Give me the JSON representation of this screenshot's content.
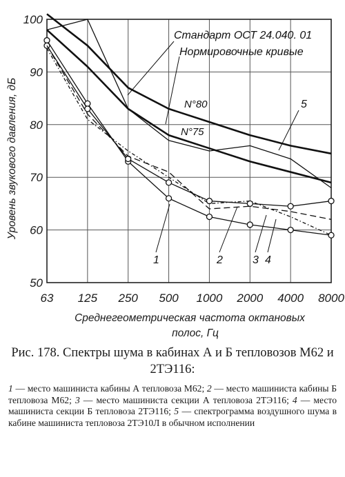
{
  "chart_data": {
    "type": "line",
    "x_categories": [
      "63",
      "125",
      "250",
      "500",
      "1000",
      "2000",
      "4000",
      "8000"
    ],
    "y_ticks": [
      50,
      60,
      70,
      80,
      90,
      100
    ],
    "ylim": [
      50,
      100
    ],
    "ylabel": "Уровень звукового давления, дБ",
    "xlabel": "Среднегеометрическая частота октановых полос, Гц",
    "annotations": {
      "standard": "Стандарт ОСТ 24.040. 01",
      "norm_curves": "Нормировочные кривые",
      "n80": "N°80",
      "n75": "N°75"
    },
    "norm_curves": [
      {
        "name": "N°80",
        "values": [
          101,
          95,
          87,
          83,
          80.5,
          78,
          76,
          74.5
        ]
      },
      {
        "name": "N°75",
        "values": [
          98,
          91,
          83,
          78,
          75.5,
          73,
          71,
          69
        ]
      }
    ],
    "series": [
      {
        "name": "1",
        "values": [
          96,
          84,
          73,
          66,
          62.5,
          61,
          60,
          59
        ]
      },
      {
        "name": "2",
        "values": [
          95,
          83,
          73.5,
          69,
          65.5,
          65,
          64.5,
          65.5
        ]
      },
      {
        "name": "3",
        "values": [
          95,
          82,
          74,
          71,
          64,
          64.5,
          63.5,
          62
        ]
      },
      {
        "name": "4",
        "values": [
          94.5,
          81,
          75,
          70,
          65,
          65.5,
          62.5,
          59
        ]
      },
      {
        "name": "5",
        "values": [
          98,
          100,
          83,
          77,
          75,
          76,
          73.5,
          68
        ]
      }
    ]
  },
  "caption": {
    "title": "Рис. 178. Спектры шума в кабинах А и Б тепловозов М62 и 2ТЭ116:",
    "legend": [
      {
        "num": "1",
        "text": " — место машиниста кабины А тепловоза М62; "
      },
      {
        "num": "2",
        "text": " — место машиниста кабины Б тепловоза М62; "
      },
      {
        "num": "3",
        "text": " — место машиниста секции А тепловоза 2ТЭ116; "
      },
      {
        "num": "4",
        "text": " — место машиниста секции Б тепловоза 2ТЭ116; "
      },
      {
        "num": "5",
        "text": " — спектрограмма воздушного шума в кабине машиниста тепловоза 2ТЭ10Л в обычном исполнении"
      }
    ]
  }
}
